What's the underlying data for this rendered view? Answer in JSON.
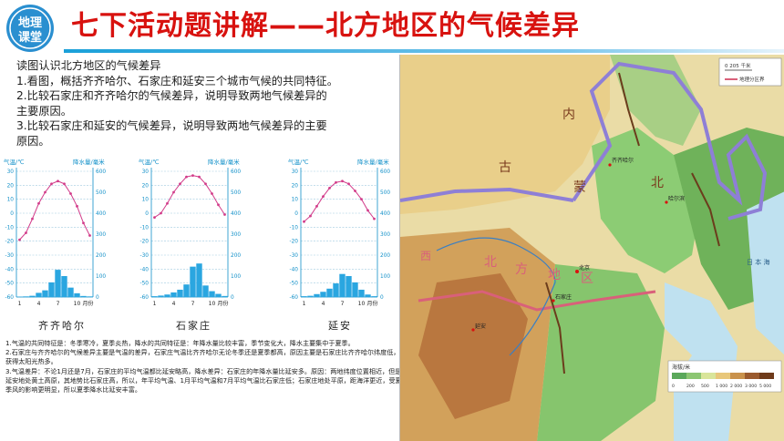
{
  "header": {
    "logo_line1": "地理",
    "logo_line2": "课堂",
    "title": "七下活动题讲解——北方地区的气候差异"
  },
  "question": {
    "intro": "读图认识北方地区的气候差异",
    "q1": "1.看图，概括齐齐哈尔、石家庄和延安三个城市气候的共同特征。",
    "q2_line1": "2.比较石家庄和齐齐哈尔的气候差异，说明导致两地气候差异的",
    "q2_line2": "主要原因。",
    "q3_line1": "3.比较石家庄和延安的气候差异，说明导致两地气候差异的主要",
    "q3_line2": "原因。"
  },
  "chart_common": {
    "temp_axis_label": "气温/℃",
    "precip_axis_label": "降水量/毫米",
    "temp_ticks": [
      "30",
      "20",
      "10",
      "0",
      "-10",
      "-20",
      "-30",
      "-40",
      "-50",
      "-60"
    ],
    "precip_ticks": [
      "600",
      "500",
      "400",
      "300",
      "200",
      "100",
      "0"
    ],
    "month_ticks": [
      "1",
      "4",
      "7",
      "10"
    ],
    "month_unit": "月份"
  },
  "chart_data": [
    {
      "type": "bar",
      "city": "齐齐哈尔",
      "categories": [
        "1",
        "2",
        "3",
        "4",
        "5",
        "6",
        "7",
        "8",
        "9",
        "10",
        "11",
        "12"
      ],
      "series": [
        {
          "name": "降水量",
          "values": [
            2,
            3,
            6,
            20,
            32,
            70,
            130,
            100,
            45,
            18,
            5,
            3
          ]
        },
        {
          "name": "气温",
          "values": [
            -19,
            -14,
            -4,
            7,
            15,
            21,
            23,
            21,
            14,
            5,
            -7,
            -16
          ]
        }
      ],
      "ylim_temp": [
        -60,
        30
      ],
      "ylim_precip": [
        0,
        600
      ]
    },
    {
      "type": "bar",
      "city": "石家庄",
      "categories": [
        "1",
        "2",
        "3",
        "4",
        "5",
        "6",
        "7",
        "8",
        "9",
        "10",
        "11",
        "12"
      ],
      "series": [
        {
          "name": "降水量",
          "values": [
            4,
            7,
            12,
            22,
            35,
            60,
            145,
            160,
            55,
            28,
            15,
            5
          ]
        },
        {
          "name": "气温",
          "values": [
            -3,
            0,
            7,
            15,
            21,
            26,
            27,
            26,
            21,
            14,
            6,
            -1
          ]
        }
      ],
      "ylim_temp": [
        -60,
        30
      ],
      "ylim_precip": [
        0,
        600
      ]
    },
    {
      "type": "bar",
      "city": "延安",
      "categories": [
        "1",
        "2",
        "3",
        "4",
        "5",
        "6",
        "7",
        "8",
        "9",
        "10",
        "11",
        "12"
      ],
      "series": [
        {
          "name": "降水量",
          "values": [
            4,
            6,
            14,
            25,
            40,
            65,
            110,
            100,
            70,
            35,
            12,
            4
          ]
        },
        {
          "name": "气温",
          "values": [
            -6,
            -2,
            5,
            12,
            18,
            22,
            23,
            21,
            16,
            10,
            2,
            -4
          ]
        }
      ],
      "ylim_temp": [
        -60,
        30
      ],
      "ylim_precip": [
        0,
        600
      ]
    }
  ],
  "answers": {
    "a1": "1.气温的共同特征是：冬季寒冷，夏季炎热，降水的共同特征是：年降水量比较丰富，季节变化大，降水主要集中于夏季。",
    "a2": "2.石家庄与齐齐哈尔的气候差异主要是气温的差异，石家庄气温比齐齐哈尔无论冬季还是夏季都高，原因主要是石家庄比齐齐哈尔纬度低，获得太阳光热多。",
    "a3": "3.气温差异：不论1月还是7月，石家庄的平均气温都比延安略高，降水差异：石家庄的年降水量比延安多。原因：两地纬度位置相近，但是延安地处黄土高原，其地势比石家庄高，所以，年平均气温、1月平均气温和7月平均气温比石家庄低；石家庄地处平原，距海洋更近，受夏季风的影响更明显，所以夏季降水比延安丰富。"
  },
  "map": {
    "scale_text": "0     205 千米",
    "legend_text": "地理分区界",
    "elevation_title": "海拔/米",
    "elevation_ticks": [
      "0",
      "200",
      "500",
      "1 000",
      "2 000",
      "3 000",
      "5 000"
    ],
    "labels": {
      "gu": "古",
      "nei": "内",
      "meng": "蒙",
      "bei1": "北",
      "bei2": "北",
      "fang": "方",
      "di": "地",
      "qu": "区",
      "xi": "西",
      "ri_ben_hai": "日 本 海",
      "qi_qi_ha_er": "齐齐哈尔",
      "beijing": "北京",
      "shi_jia_zhuang": "石家庄",
      "yan_an": "延安",
      "ha_er_bin": "哈尔滨"
    },
    "colors": {
      "plain": "#7fbf6b",
      "highland": "#e8c77a",
      "mountain": "#b9773f",
      "sea": "#bfe1f0",
      "boundary": "#8e7fd6",
      "boundary_red": "#d9607a"
    }
  }
}
